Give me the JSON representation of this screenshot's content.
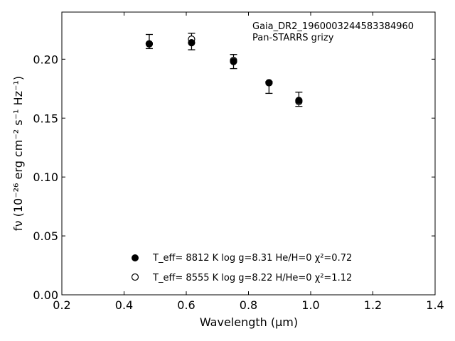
{
  "chart_data": {
    "type": "scatter",
    "title": "",
    "xlabel": "Wavelength (μm)",
    "ylabel": "fν (10⁻²⁶ erg cm⁻² s⁻¹ Hz⁻¹)",
    "xlim": [
      0.2,
      1.4
    ],
    "ylim": [
      0.0,
      0.24
    ],
    "xticks": [
      "0.2",
      "0.4",
      "0.6",
      "0.8",
      "1.0",
      "1.2",
      "1.4"
    ],
    "yticks": [
      "0.00",
      "0.05",
      "0.10",
      "0.15",
      "0.20"
    ],
    "annotations": [
      "Gaia_DR2_1960003244583384960",
      "Pan-STARRS grizy"
    ],
    "observed": {
      "x": [
        0.481,
        0.617,
        0.752,
        0.866,
        0.962
      ],
      "y": [
        0.215,
        0.215,
        0.198,
        0.176,
        0.166
      ],
      "yerr": [
        0.006,
        0.007,
        0.006,
        0.005,
        0.006
      ]
    },
    "series": [
      {
        "name": "T_eff=  8812 K  log g=8.31  He/H=0  χ²=0.72",
        "marker": "filled",
        "x": [
          0.481,
          0.617,
          0.752,
          0.866,
          0.962
        ],
        "y": [
          0.213,
          0.214,
          0.198,
          0.18,
          0.165
        ]
      },
      {
        "name": "T_eff=  8555 K  log g=8.22  H/He=0  χ²=1.12",
        "marker": "open",
        "x": [
          0.481,
          0.617,
          0.752,
          0.866,
          0.962
        ],
        "y": [
          0.213,
          0.217,
          0.199,
          0.18,
          0.164
        ]
      }
    ],
    "legend": "lower-center",
    "grid": false
  }
}
